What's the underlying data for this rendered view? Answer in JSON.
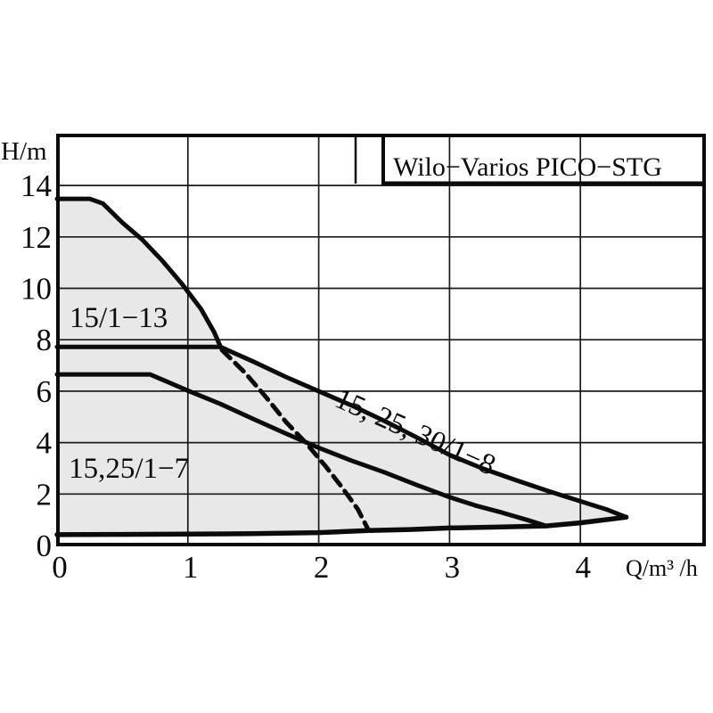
{
  "page": {
    "background": "#ffffff"
  },
  "chart_data": {
    "type": "area",
    "title": "Wilo−Varios PICO−STG",
    "ylabel": "H/m",
    "xlabel": "Q/m³ /h",
    "xlim": [
      0,
      4.95
    ],
    "ylim": [
      0,
      16
    ],
    "x_ticks": [
      0,
      1,
      2,
      3,
      4
    ],
    "y_ticks": [
      0,
      2,
      4,
      6,
      8,
      10,
      12,
      14
    ],
    "grid": true,
    "fill_color": "#e8e8e8",
    "line_color": "#0b0b0b",
    "series": [
      {
        "name": "max-curve-15-1-13",
        "style": "solid",
        "points": [
          [
            0,
            13.48
          ],
          [
            0.25,
            13.48
          ],
          [
            0.35,
            13.3
          ],
          [
            0.5,
            12.55
          ],
          [
            0.65,
            11.9
          ],
          [
            0.8,
            11.1
          ],
          [
            0.95,
            10.2
          ],
          [
            1.1,
            9.2
          ],
          [
            1.2,
            8.3
          ],
          [
            1.25,
            7.72
          ]
        ]
      },
      {
        "name": "max-curve-15-25-30-1-8",
        "style": "solid",
        "points": [
          [
            0,
            7.72
          ],
          [
            1.25,
            7.72
          ],
          [
            1.5,
            7.15
          ],
          [
            1.75,
            6.55
          ],
          [
            2.0,
            6.0
          ],
          [
            2.25,
            5.45
          ],
          [
            2.5,
            4.85
          ],
          [
            2.75,
            4.2
          ],
          [
            3.0,
            3.52
          ],
          [
            3.25,
            3.0
          ],
          [
            3.5,
            2.55
          ],
          [
            3.75,
            2.12
          ],
          [
            4.0,
            1.72
          ],
          [
            4.2,
            1.4
          ],
          [
            4.35,
            1.1
          ]
        ]
      },
      {
        "name": "max-curve-15-25-1-7",
        "style": "solid",
        "points": [
          [
            0,
            6.65
          ],
          [
            0.71,
            6.65
          ],
          [
            0.85,
            6.35
          ],
          [
            1.0,
            6.02
          ],
          [
            1.25,
            5.5
          ],
          [
            1.5,
            4.92
          ],
          [
            1.75,
            4.35
          ],
          [
            2.0,
            3.8
          ],
          [
            2.25,
            3.3
          ],
          [
            2.5,
            2.85
          ],
          [
            2.75,
            2.35
          ],
          [
            3.0,
            1.88
          ],
          [
            3.2,
            1.55
          ],
          [
            3.4,
            1.28
          ],
          [
            3.6,
            0.98
          ],
          [
            3.74,
            0.76
          ]
        ]
      },
      {
        "name": "min-speed-curve",
        "style": "solid",
        "points": [
          [
            0,
            0.42
          ],
          [
            0.5,
            0.43
          ],
          [
            1.0,
            0.44
          ],
          [
            1.5,
            0.46
          ],
          [
            2.0,
            0.5
          ],
          [
            2.38,
            0.58
          ],
          [
            2.7,
            0.62
          ],
          [
            3.0,
            0.68
          ],
          [
            3.4,
            0.72
          ],
          [
            3.74,
            0.76
          ],
          [
            4.0,
            0.88
          ],
          [
            4.35,
            1.1
          ]
        ]
      },
      {
        "name": "dashed-characteristic",
        "style": "dashed",
        "points": [
          [
            1.26,
            7.6
          ],
          [
            1.44,
            6.7
          ],
          [
            1.6,
            5.75
          ],
          [
            1.75,
            4.8
          ],
          [
            1.9,
            4.0
          ],
          [
            2.05,
            3.1
          ],
          [
            2.18,
            2.25
          ],
          [
            2.3,
            1.4
          ],
          [
            2.38,
            0.6
          ]
        ]
      }
    ],
    "annotations": [
      {
        "name": "curve-label-15-1-13",
        "text": "15/1−13",
        "q": 0.095,
        "h": 8.49,
        "angle": 0
      },
      {
        "name": "curve-label-15-25-1-7",
        "text": "15,25/1−7",
        "q": 0.089,
        "h": 2.63,
        "angle": 0
      },
      {
        "name": "curve-label-15-25-30-1-8",
        "text": "15, 25, 30/1−8",
        "q": 2.11,
        "h": 5.44,
        "angle": 24
      }
    ]
  }
}
